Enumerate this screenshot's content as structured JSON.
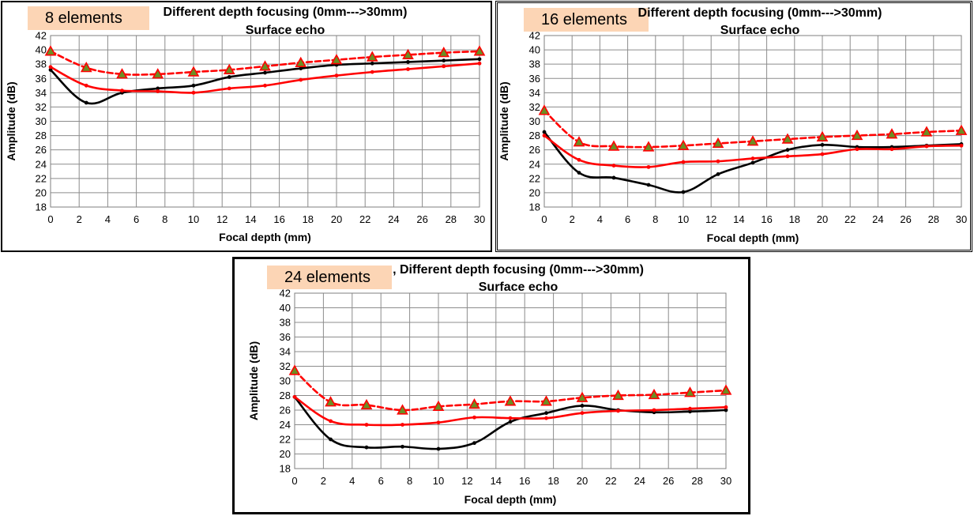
{
  "charts": [
    {
      "badge": "8 elements",
      "title": "Different depth focusing (0mm--->30mm)",
      "subtitle": "Surface echo"
    },
    {
      "badge": "16 elements",
      "title": "Different depth focusing (0mm--->30mm)",
      "subtitle": "Surface echo"
    },
    {
      "badge": "24 elements",
      "title": ", Different depth focusing (0mm--->30mm)",
      "subtitle": "Surface echo"
    }
  ],
  "chart_data": [
    {
      "type": "line",
      "badge": "8 elements",
      "title": "Different depth focusing (0mm--->30mm)",
      "subtitle": "Surface echo",
      "xlabel": "Focal depth (mm)",
      "ylabel": "Amplitude (dB)",
      "xlim": [
        0,
        30
      ],
      "ylim": [
        18,
        42
      ],
      "xticks": [
        0,
        2,
        4,
        6,
        8,
        10,
        12,
        14,
        16,
        18,
        20,
        22,
        24,
        26,
        28,
        30
      ],
      "yticks": [
        18,
        20,
        22,
        24,
        26,
        28,
        30,
        32,
        34,
        36,
        38,
        40,
        42
      ],
      "grid": true,
      "series": [
        {
          "color": "#000000",
          "style": "solid",
          "marker": "dot",
          "x": [
            0,
            2.5,
            5,
            7.5,
            10,
            12.5,
            15,
            17.5,
            20,
            22.5,
            25,
            27.5,
            30
          ],
          "y": [
            37.2,
            32.6,
            34.0,
            34.6,
            35.0,
            36.2,
            36.8,
            37.4,
            37.9,
            38.1,
            38.3,
            38.5,
            38.7
          ]
        },
        {
          "color": "#ff0000",
          "style": "solid",
          "marker": "dot",
          "x": [
            0,
            2.5,
            5,
            7.5,
            10,
            12.5,
            15,
            17.5,
            20,
            22.5,
            25,
            27.5,
            30
          ],
          "y": [
            37.6,
            35.0,
            34.3,
            34.2,
            34.0,
            34.6,
            35.0,
            35.8,
            36.4,
            36.9,
            37.3,
            37.7,
            38.1
          ]
        },
        {
          "color": "#ff0000",
          "style": "dashed",
          "marker": "triangle",
          "x": [
            0,
            2.5,
            5,
            7.5,
            10,
            12.5,
            15,
            17.5,
            20,
            22.5,
            25,
            27.5,
            30
          ],
          "y": [
            39.8,
            37.5,
            36.6,
            36.6,
            36.9,
            37.2,
            37.7,
            38.2,
            38.6,
            39.0,
            39.3,
            39.6,
            39.8
          ]
        }
      ]
    },
    {
      "type": "line",
      "badge": "16 elements",
      "title": "Different depth focusing (0mm--->30mm)",
      "subtitle": "Surface echo",
      "xlabel": "Focal depth (mm)",
      "ylabel": "Amplitude (dB)",
      "xlim": [
        0,
        30
      ],
      "ylim": [
        18,
        42
      ],
      "xticks": [
        0,
        2,
        4,
        6,
        8,
        10,
        12,
        14,
        16,
        18,
        20,
        22,
        24,
        26,
        28,
        30
      ],
      "yticks": [
        18,
        20,
        22,
        24,
        26,
        28,
        30,
        32,
        34,
        36,
        38,
        40,
        42
      ],
      "grid": true,
      "series": [
        {
          "color": "#000000",
          "style": "solid",
          "marker": "dot",
          "x": [
            0,
            2.5,
            5,
            7.5,
            10,
            12.5,
            15,
            17.5,
            20,
            22.5,
            25,
            27.5,
            30
          ],
          "y": [
            28.5,
            22.8,
            22.1,
            21.1,
            20.1,
            22.6,
            24.2,
            26.0,
            26.7,
            26.4,
            26.4,
            26.6,
            26.8
          ]
        },
        {
          "color": "#ff0000",
          "style": "solid",
          "marker": "dot",
          "x": [
            0,
            2.5,
            5,
            7.5,
            10,
            12.5,
            15,
            17.5,
            20,
            22.5,
            25,
            27.5,
            30
          ],
          "y": [
            28.0,
            24.6,
            23.8,
            23.6,
            24.3,
            24.4,
            24.8,
            25.1,
            25.4,
            26.1,
            26.1,
            26.5,
            26.6
          ]
        },
        {
          "color": "#ff0000",
          "style": "dashed",
          "marker": "triangle",
          "x": [
            0,
            2.5,
            5,
            7.5,
            10,
            12.5,
            15,
            17.5,
            20,
            22.5,
            25,
            27.5,
            30
          ],
          "y": [
            31.5,
            27.1,
            26.5,
            26.4,
            26.6,
            26.9,
            27.2,
            27.5,
            27.8,
            28.0,
            28.2,
            28.5,
            28.7
          ]
        }
      ]
    },
    {
      "type": "line",
      "badge": "24 elements",
      "title": ", Different depth focusing (0mm--->30mm)",
      "subtitle": "Surface echo",
      "xlabel": "Focal depth (mm)",
      "ylabel": "Amplitude (dB)",
      "xlim": [
        0,
        30
      ],
      "ylim": [
        18,
        42
      ],
      "xticks": [
        0,
        2,
        4,
        6,
        8,
        10,
        12,
        14,
        16,
        18,
        20,
        22,
        24,
        26,
        28,
        30
      ],
      "yticks": [
        18,
        20,
        22,
        24,
        26,
        28,
        30,
        32,
        34,
        36,
        38,
        40,
        42
      ],
      "grid": true,
      "series": [
        {
          "color": "#000000",
          "style": "solid",
          "marker": "dot",
          "x": [
            0,
            2.5,
            5,
            7.5,
            10,
            12.5,
            15,
            17.5,
            20,
            22.5,
            25,
            27.5,
            30
          ],
          "y": [
            27.8,
            22.0,
            20.9,
            21.0,
            20.7,
            21.5,
            24.4,
            25.6,
            26.6,
            26.0,
            25.7,
            25.8,
            26.0
          ]
        },
        {
          "color": "#ff0000",
          "style": "solid",
          "marker": "dot",
          "x": [
            0,
            2.5,
            5,
            7.5,
            10,
            12.5,
            15,
            17.5,
            20,
            22.5,
            25,
            27.5,
            30
          ],
          "y": [
            27.8,
            24.5,
            24.0,
            24.0,
            24.3,
            25.0,
            24.9,
            24.9,
            25.6,
            25.9,
            26.0,
            26.2,
            26.4
          ]
        },
        {
          "color": "#ff0000",
          "style": "dashed",
          "marker": "triangle",
          "x": [
            0,
            2.5,
            5,
            7.5,
            10,
            12.5,
            15,
            17.5,
            20,
            22.5,
            25,
            27.5,
            30
          ],
          "y": [
            31.4,
            27.1,
            26.7,
            26.0,
            26.5,
            26.8,
            27.2,
            27.2,
            27.7,
            28.0,
            28.1,
            28.4,
            28.7
          ]
        }
      ]
    }
  ],
  "colors": {
    "black_series": "#000000",
    "red_series": "#ff0000",
    "triangle_fill": "#6b8e23",
    "badge_bg": "#fcd5b5",
    "grid": "#8c8c8c"
  }
}
